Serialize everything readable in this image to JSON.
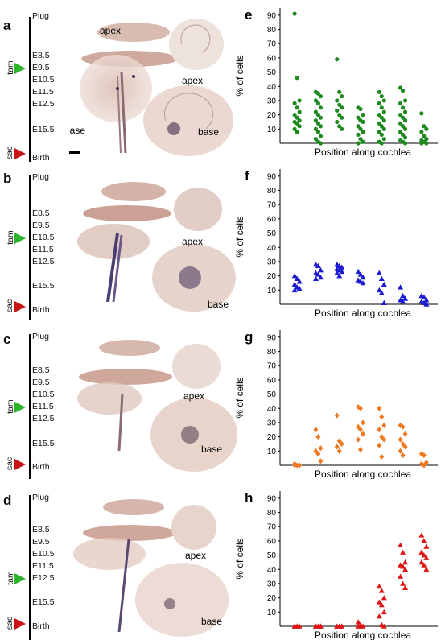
{
  "timeline_labels": {
    "top": "Plug",
    "stages": [
      "E8.5",
      "E9.5",
      "E10.5",
      "E11.5",
      "E12.5",
      "E15.5"
    ],
    "bottom": "Birth",
    "tam": "tam",
    "sac": "sac"
  },
  "rows": [
    {
      "panel": "a",
      "tam_stage": "E9.5",
      "img_labels": [
        "apex",
        "apex",
        "base",
        "base"
      ]
    },
    {
      "panel": "b",
      "tam_stage": "E10.5",
      "img_labels": [
        "apex",
        "base"
      ]
    },
    {
      "panel": "c",
      "tam_stage": "E11.5",
      "img_labels": [
        "apex",
        "base"
      ]
    },
    {
      "panel": "d",
      "tam_stage": "E12.5",
      "img_labels": [
        "apex",
        "base"
      ]
    }
  ],
  "colors": {
    "e": "#1e8a1e",
    "f": "#1a1ad0",
    "g": "#f07820",
    "h": "#e01414",
    "arrow_green": "#2cb52c",
    "arrow_red": "#c81414"
  },
  "chart_data": [
    {
      "panel": "e",
      "type": "scatter",
      "marker": "circle",
      "xlabel": "Position along cochlea",
      "ylabel": "% of cells",
      "ylim": [
        0,
        95
      ],
      "yticks": [
        10,
        20,
        30,
        40,
        50,
        60,
        70,
        80,
        90
      ],
      "yticks_shown": [
        10,
        20,
        30,
        40,
        50,
        60,
        70,
        80,
        90
      ],
      "groups": [
        [
          91,
          46,
          30,
          28,
          25,
          22,
          20,
          18,
          16,
          15,
          14,
          12,
          10,
          8
        ],
        [
          36,
          35,
          33,
          30,
          28,
          25,
          22,
          20,
          18,
          16,
          14,
          12,
          10,
          8,
          5,
          3,
          1,
          0
        ],
        [
          59,
          36,
          33,
          30,
          27,
          25,
          23,
          20,
          18,
          15,
          12,
          10
        ],
        [
          25,
          24,
          20,
          18,
          16,
          15,
          12,
          10,
          8,
          6,
          3,
          1,
          0
        ],
        [
          36,
          33,
          30,
          28,
          25,
          22,
          20,
          18,
          16,
          14,
          12,
          10,
          8,
          6,
          3,
          1,
          0
        ],
        [
          39,
          37,
          30,
          28,
          25,
          22,
          20,
          18,
          16,
          14,
          12,
          10,
          8,
          6,
          4,
          2,
          1,
          0
        ],
        [
          21,
          12,
          10,
          8,
          5,
          3,
          2,
          1,
          0,
          0
        ]
      ]
    },
    {
      "panel": "f",
      "type": "scatter",
      "marker": "triangle",
      "xlabel": "Position along cochlea",
      "ylabel": "% of cells",
      "ylim": [
        0,
        95
      ],
      "yticks": [
        10,
        20,
        30,
        40,
        50,
        60,
        70,
        80,
        90
      ],
      "yticks_shown": [
        10,
        20,
        30,
        40,
        50,
        60,
        70,
        80,
        90
      ],
      "groups": [
        [
          20,
          18,
          16,
          14,
          12,
          11,
          10
        ],
        [
          28,
          27,
          24,
          22,
          21,
          19,
          18
        ],
        [
          28,
          27,
          26,
          25,
          24,
          23,
          22,
          20
        ],
        [
          23,
          21,
          19,
          17,
          16,
          15
        ],
        [
          22,
          18,
          14,
          10,
          8,
          1
        ],
        [
          12,
          6,
          4,
          3,
          2
        ],
        [
          6,
          5,
          3,
          2,
          1,
          0
        ]
      ]
    },
    {
      "panel": "g",
      "type": "scatter",
      "marker": "diamond",
      "xlabel": "Position along cochlea",
      "ylabel": "% of cells",
      "ylim": [
        0,
        95
      ],
      "yticks": [
        10,
        20,
        30,
        40,
        50,
        60,
        70,
        80,
        90
      ],
      "yticks_shown": [
        10,
        20,
        30,
        40,
        50,
        60,
        70,
        80,
        90
      ],
      "groups": [
        [
          1,
          0,
          0,
          0
        ],
        [
          25,
          20,
          12,
          10,
          8,
          3
        ],
        [
          35,
          17,
          15,
          13,
          10
        ],
        [
          41,
          40,
          30,
          27,
          25,
          22,
          18,
          11
        ],
        [
          40,
          34,
          28,
          25,
          20,
          18,
          14,
          6
        ],
        [
          28,
          27,
          22,
          18,
          15,
          13,
          10,
          7
        ],
        [
          8,
          7,
          2,
          1,
          0
        ]
      ]
    },
    {
      "panel": "h",
      "type": "scatter",
      "marker": "triangle",
      "xlabel": "Position along cochlea",
      "ylabel": "% of cells",
      "ylim": [
        0,
        95
      ],
      "yticks": [
        10,
        20,
        30,
        40,
        50,
        60,
        70,
        80,
        90
      ],
      "yticks_shown": [
        10,
        20,
        30,
        40,
        50,
        60,
        70,
        80,
        90
      ],
      "groups": [
        [
          0,
          0,
          0,
          0,
          0
        ],
        [
          0,
          0,
          0,
          0,
          0,
          0
        ],
        [
          0,
          0,
          0,
          0,
          0,
          0
        ],
        [
          3,
          1,
          0,
          0,
          0
        ],
        [
          28,
          25,
          20,
          17,
          15,
          10,
          7,
          1,
          0
        ],
        [
          57,
          52,
          45,
          43,
          42,
          40,
          35,
          30,
          27
        ],
        [
          64,
          60,
          56,
          52,
          50,
          48,
          45,
          43,
          40
        ]
      ]
    }
  ]
}
